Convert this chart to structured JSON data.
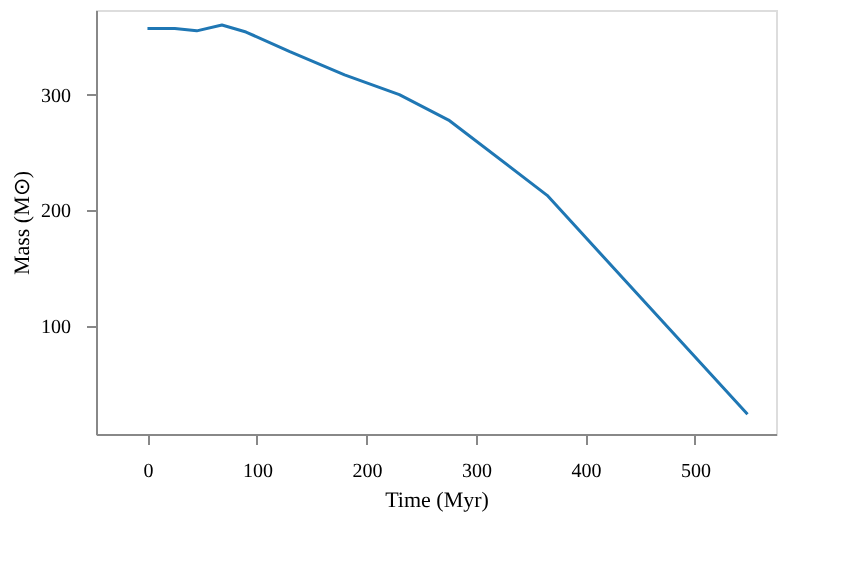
{
  "chart_data": {
    "type": "line",
    "xlabel": "Time (Myr)",
    "ylabel": "Mass (M⊙)",
    "x": [
      0,
      25,
      45,
      68,
      90,
      130,
      180,
      230,
      275,
      365,
      548
    ],
    "series": [
      {
        "color": "#1f77b4",
        "values": [
          357,
          357,
          355,
          360,
          354,
          337,
          317,
          300,
          278,
          213,
          24
        ]
      }
    ],
    "xlim": [
      -47,
      574
    ],
    "ylim": [
      7,
      373
    ],
    "xticks": [
      0,
      100,
      200,
      300,
      400,
      500
    ],
    "yticks": [
      100,
      200,
      300
    ],
    "grid": false,
    "marker": "none",
    "line_style": "solid"
  }
}
